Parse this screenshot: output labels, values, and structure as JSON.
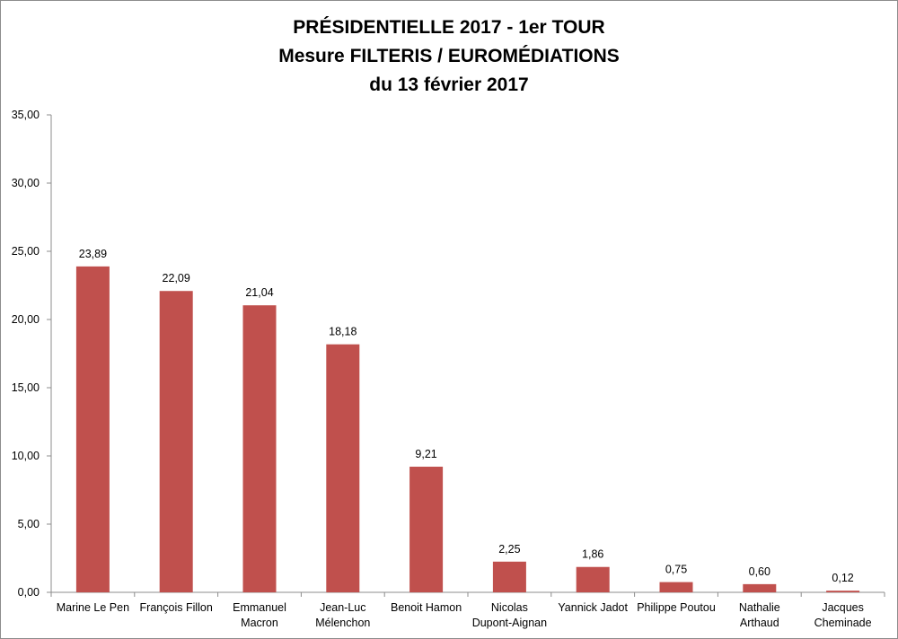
{
  "chart_data": {
    "type": "bar",
    "title": [
      "PRÉSIDENTIELLE 2017 - 1er TOUR",
      "Mesure FILTERIS / EUROMÉDIATIONS",
      "du 13 février 2017"
    ],
    "categories": [
      [
        "Marine Le Pen"
      ],
      [
        "François Fillon"
      ],
      [
        "Emmanuel",
        "Macron"
      ],
      [
        "Jean-Luc",
        "Mélenchon"
      ],
      [
        "Benoit Hamon"
      ],
      [
        "Nicolas",
        "Dupont-Aignan"
      ],
      [
        "Yannick Jadot"
      ],
      [
        "Philippe Poutou"
      ],
      [
        "Nathalie",
        "Arthaud"
      ],
      [
        "Jacques",
        "Cheminade"
      ]
    ],
    "values": [
      23.89,
      22.09,
      21.04,
      18.18,
      9.21,
      2.25,
      1.86,
      0.75,
      0.6,
      0.12
    ],
    "value_labels": [
      "23,89",
      "22,09",
      "21,04",
      "18,18",
      "9,21",
      "2,25",
      "1,86",
      "0,75",
      "0,60",
      "0,12"
    ],
    "y_ticks": [
      "0,00",
      "5,00",
      "10,00",
      "15,00",
      "20,00",
      "25,00",
      "30,00",
      "35,00"
    ],
    "ylim": [
      0,
      35
    ],
    "grid": false,
    "legend": "none",
    "bar_color": "#c0504d"
  }
}
